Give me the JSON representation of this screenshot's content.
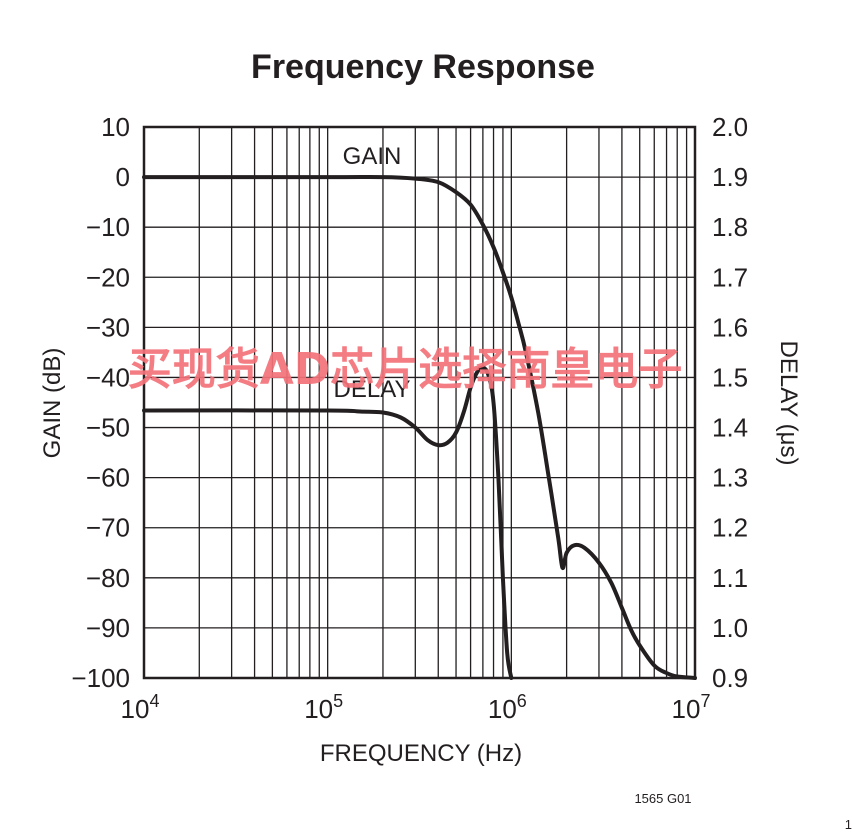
{
  "chart_data": {
    "type": "line",
    "title": "Frequency Response",
    "xlabel": "FREQUENCY (Hz)",
    "ylabel_left": "GAIN (dB)",
    "ylabel_right": "DELAY (μs)",
    "x_scale": "log",
    "xlim": [
      10000,
      10000000
    ],
    "ylim_left": [
      -100,
      10
    ],
    "ylim_right": [
      0.9,
      2.0
    ],
    "x_tick_labels": [
      {
        "base": "10",
        "exp": "4"
      },
      {
        "base": "10",
        "exp": "5"
      },
      {
        "base": "10",
        "exp": "6"
      },
      {
        "base": "10",
        "exp": "7"
      }
    ],
    "y_left_ticks": [
      "10",
      "0",
      "−10",
      "−20",
      "−30",
      "−40",
      "−50",
      "−60",
      "−70",
      "−80",
      "−90",
      "−100"
    ],
    "y_right_ticks": [
      "2.0",
      "1.9",
      "1.8",
      "1.7",
      "1.6",
      "1.5",
      "1.4",
      "1.3",
      "1.2",
      "1.1",
      "1.0",
      "0.9"
    ],
    "grid": true,
    "series": [
      {
        "name": "GAIN",
        "axis": "left",
        "x": [
          10000,
          100000,
          200000,
          300000,
          400000,
          500000,
          600000,
          700000,
          800000,
          900000,
          1000000,
          1100000,
          1200000,
          1400000,
          1600000,
          1800000,
          1900000,
          2000000,
          2200000,
          2500000,
          3000000,
          3500000,
          4000000,
          4500000,
          5000000,
          6000000,
          7000000,
          8000000,
          10000000
        ],
        "y": [
          0,
          0,
          0,
          -0.3,
          -1,
          -3,
          -5.5,
          -9.5,
          -14,
          -19,
          -24,
          -29.5,
          -35,
          -47,
          -60,
          -72,
          -78,
          -75,
          -73.5,
          -74,
          -77,
          -81,
          -86,
          -90.5,
          -93.5,
          -97.5,
          -99,
          -99.7,
          -100
        ]
      },
      {
        "name": "DELAY",
        "axis": "right",
        "x": [
          10000,
          100000,
          150000,
          200000,
          250000,
          300000,
          350000,
          400000,
          450000,
          500000,
          550000,
          600000,
          650000,
          700000,
          750000,
          800000,
          850000,
          900000,
          950000,
          1000000
        ],
        "y": [
          1.434,
          1.434,
          1.432,
          1.43,
          1.42,
          1.4,
          1.375,
          1.365,
          1.37,
          1.39,
          1.43,
          1.48,
          1.51,
          1.52,
          1.505,
          1.45,
          1.3,
          1.1,
          0.95,
          0.9
        ]
      }
    ],
    "annotations": [
      "GAIN",
      "DELAY"
    ],
    "footnote": "1565 G01",
    "page_number": "1"
  },
  "watermark": "买现货AD芯片选择南皇电子",
  "colors": {
    "ink": "#231f20",
    "grid": "#231f20",
    "watermark": "#f4727a"
  }
}
